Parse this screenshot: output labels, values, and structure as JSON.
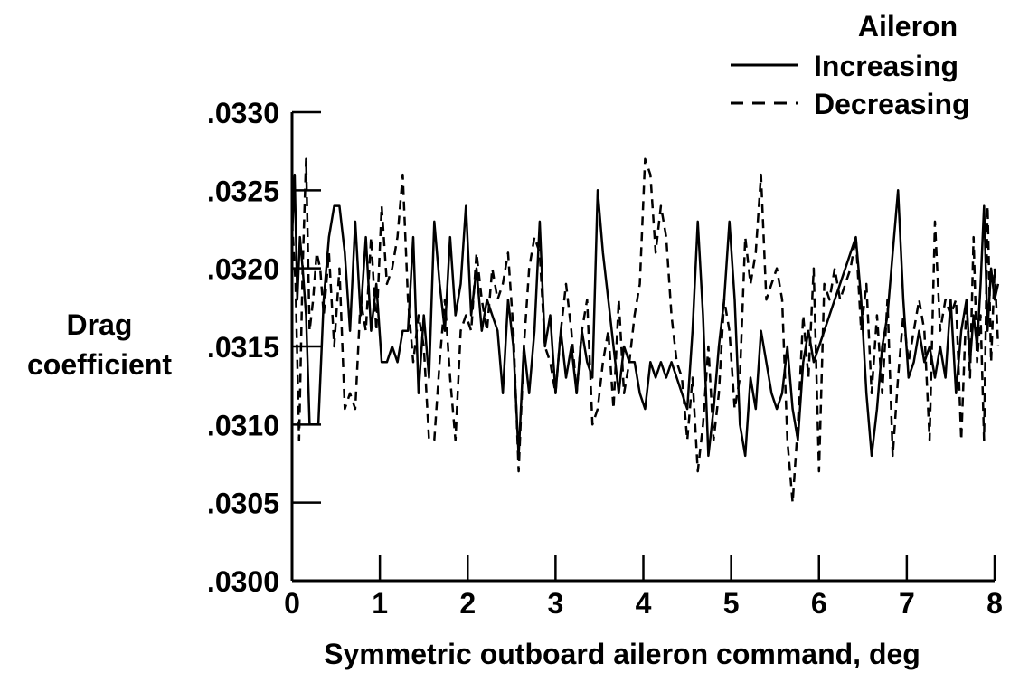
{
  "chart_data": {
    "type": "line",
    "xlabel": "Symmetric outboard aileron command, deg",
    "ylabel_lines": [
      "Drag",
      "coefficient"
    ],
    "xlim": [
      0,
      8
    ],
    "ylim": [
      0.03,
      0.033
    ],
    "x_ticks": [
      0,
      1,
      2,
      3,
      4,
      5,
      6,
      7,
      8
    ],
    "x_tick_labels": [
      "0",
      "1",
      "2",
      "3",
      "4",
      "5",
      "6",
      "7",
      "8"
    ],
    "y_ticks": [
      0.03,
      0.0305,
      0.031,
      0.0315,
      0.032,
      0.0325,
      0.033
    ],
    "y_tick_labels": [
      ".0300",
      ".0305",
      ".0310",
      ".0315",
      ".0320",
      ".0325",
      ".0330"
    ],
    "grid": false,
    "legend": {
      "title": "Aileron",
      "placement": "top-right"
    },
    "series": [
      {
        "name": "Increasing",
        "style": "solid",
        "color": "#000000",
        "x": [
          0.0,
          0.03,
          0.06,
          0.09,
          0.12,
          0.16,
          0.2,
          0.25,
          0.3,
          0.36,
          0.42,
          0.48,
          0.54,
          0.6,
          0.66,
          0.72,
          0.78,
          0.84,
          0.9,
          0.96,
          1.02,
          1.08,
          1.14,
          1.2,
          1.26,
          1.32,
          1.38,
          1.44,
          1.5,
          1.56,
          1.62,
          1.68,
          1.74,
          1.8,
          1.86,
          1.92,
          1.98,
          2.04,
          2.1,
          2.16,
          2.22,
          2.28,
          2.34,
          2.4,
          2.46,
          2.52,
          2.58,
          2.64,
          2.7,
          2.76,
          2.82,
          2.88,
          2.94,
          3.0,
          3.06,
          3.12,
          3.18,
          3.24,
          3.3,
          3.36,
          3.42,
          3.48,
          3.54,
          3.6,
          3.66,
          3.72,
          3.78,
          3.84,
          3.9,
          3.96,
          4.02,
          4.08,
          4.14,
          4.2,
          4.26,
          4.32,
          4.38,
          4.44,
          4.5,
          4.56,
          4.62,
          4.68,
          4.74,
          4.8,
          4.86,
          4.92,
          4.98,
          5.04,
          5.1,
          5.16,
          5.22,
          5.28,
          5.34,
          5.4,
          5.46,
          5.52,
          5.58,
          5.64,
          5.7,
          5.76,
          5.82,
          5.88,
          5.94,
          6.0,
          6.06,
          6.12,
          6.18,
          6.24,
          6.3,
          6.36,
          6.42,
          6.48,
          6.54,
          6.6,
          6.66,
          6.72,
          6.78,
          6.84,
          6.9,
          6.96,
          7.02,
          7.08,
          7.14,
          7.2,
          7.26,
          7.32,
          7.38,
          7.44,
          7.5,
          7.56,
          7.62,
          7.68,
          7.72,
          7.76,
          7.8,
          7.84,
          7.88,
          7.92,
          7.96,
          8.0,
          8.04
        ],
        "y": [
          0.0322,
          0.0326,
          0.0318,
          0.0322,
          0.032,
          0.0317,
          0.031,
          0.031,
          0.031,
          0.0318,
          0.0322,
          0.0324,
          0.0324,
          0.0321,
          0.0316,
          0.0323,
          0.0317,
          0.0322,
          0.0316,
          0.0319,
          0.0314,
          0.0314,
          0.0315,
          0.0314,
          0.0316,
          0.0316,
          0.0322,
          0.0312,
          0.0317,
          0.0313,
          0.0323,
          0.0319,
          0.0316,
          0.0322,
          0.0317,
          0.0319,
          0.0324,
          0.0317,
          0.032,
          0.0316,
          0.0318,
          0.0317,
          0.0316,
          0.0312,
          0.0318,
          0.0315,
          0.0308,
          0.0315,
          0.0312,
          0.0316,
          0.0323,
          0.0315,
          0.0317,
          0.0312,
          0.0316,
          0.0313,
          0.0315,
          0.0312,
          0.0316,
          0.0314,
          0.0313,
          0.0325,
          0.0321,
          0.0318,
          0.0315,
          0.0312,
          0.0315,
          0.0314,
          0.0314,
          0.0312,
          0.0311,
          0.0314,
          0.0313,
          0.0314,
          0.0313,
          0.0314,
          0.0313,
          0.0312,
          0.0311,
          0.0316,
          0.0323,
          0.0317,
          0.0308,
          0.0311,
          0.0315,
          0.0318,
          0.0323,
          0.0318,
          0.031,
          0.0308,
          0.0313,
          0.0311,
          0.0316,
          0.0314,
          0.0312,
          0.0311,
          0.0312,
          0.0315,
          0.0311,
          0.0309,
          0.0314,
          0.0316,
          0.0314,
          0.0315,
          0.0316,
          0.0317,
          0.0318,
          0.0319,
          0.032,
          0.0321,
          0.0322,
          0.0318,
          0.0312,
          0.0308,
          0.0311,
          0.0315,
          0.0317,
          0.0321,
          0.0325,
          0.0318,
          0.0313,
          0.0314,
          0.0316,
          0.0314,
          0.0315,
          0.0313,
          0.0315,
          0.0313,
          0.0318,
          0.0312,
          0.0316,
          0.0318,
          0.0314,
          0.0317,
          0.0315,
          0.0319,
          0.0324,
          0.0316,
          0.032,
          0.0318,
          0.0319
        ],
        "x_sparse_note": ""
      },
      {
        "name": "Decreasing",
        "style": "dashed",
        "color": "#000000",
        "x": [
          0.0,
          0.04,
          0.08,
          0.12,
          0.16,
          0.2,
          0.24,
          0.28,
          0.32,
          0.36,
          0.42,
          0.48,
          0.54,
          0.6,
          0.66,
          0.72,
          0.78,
          0.84,
          0.9,
          0.96,
          1.02,
          1.08,
          1.14,
          1.2,
          1.26,
          1.32,
          1.38,
          1.44,
          1.5,
          1.56,
          1.62,
          1.68,
          1.74,
          1.8,
          1.86,
          1.92,
          1.98,
          2.04,
          2.1,
          2.16,
          2.22,
          2.28,
          2.34,
          2.4,
          2.46,
          2.52,
          2.58,
          2.64,
          2.7,
          2.76,
          2.82,
          2.88,
          2.94,
          3.0,
          3.06,
          3.12,
          3.18,
          3.24,
          3.3,
          3.36,
          3.42,
          3.48,
          3.54,
          3.6,
          3.66,
          3.72,
          3.78,
          3.84,
          3.9,
          3.96,
          4.02,
          4.08,
          4.14,
          4.2,
          4.26,
          4.32,
          4.38,
          4.44,
          4.5,
          4.56,
          4.62,
          4.68,
          4.74,
          4.8,
          4.86,
          4.92,
          4.98,
          5.04,
          5.1,
          5.16,
          5.22,
          5.28,
          5.34,
          5.4,
          5.46,
          5.52,
          5.58,
          5.64,
          5.7,
          5.76,
          5.82,
          5.88,
          5.94,
          6.0,
          6.06,
          6.12,
          6.18,
          6.24,
          6.3,
          6.36,
          6.42,
          6.48,
          6.54,
          6.6,
          6.66,
          6.72,
          6.78,
          6.84,
          6.9,
          6.96,
          7.02,
          7.08,
          7.14,
          7.2,
          7.26,
          7.32,
          7.38,
          7.44,
          7.5,
          7.56,
          7.62,
          7.68,
          7.72,
          7.76,
          7.8,
          7.84,
          7.88,
          7.92,
          7.96,
          8.0,
          8.04
        ],
        "y": [
          0.0323,
          0.0319,
          0.0309,
          0.032,
          0.0327,
          0.0316,
          0.0318,
          0.0321,
          0.032,
          0.0317,
          0.0321,
          0.0315,
          0.032,
          0.0311,
          0.0312,
          0.0311,
          0.0318,
          0.0316,
          0.0322,
          0.0316,
          0.0324,
          0.0319,
          0.032,
          0.0322,
          0.0326,
          0.0318,
          0.0314,
          0.0317,
          0.0315,
          0.0309,
          0.0309,
          0.0314,
          0.0318,
          0.0313,
          0.0309,
          0.0316,
          0.0317,
          0.0316,
          0.0321,
          0.0318,
          0.0316,
          0.032,
          0.0318,
          0.0319,
          0.0321,
          0.0316,
          0.0307,
          0.0315,
          0.032,
          0.0322,
          0.0321,
          0.0315,
          0.0314,
          0.0312,
          0.0316,
          0.0319,
          0.0316,
          0.0312,
          0.0316,
          0.0318,
          0.031,
          0.0311,
          0.0314,
          0.0316,
          0.0311,
          0.0318,
          0.0312,
          0.0314,
          0.0317,
          0.0319,
          0.0327,
          0.0326,
          0.0321,
          0.0324,
          0.0322,
          0.0317,
          0.0314,
          0.0313,
          0.0309,
          0.0313,
          0.0307,
          0.031,
          0.0315,
          0.0309,
          0.0312,
          0.0318,
          0.0316,
          0.0311,
          0.0313,
          0.0322,
          0.0319,
          0.0321,
          0.0326,
          0.0318,
          0.0319,
          0.032,
          0.0318,
          0.0309,
          0.0305,
          0.031,
          0.0317,
          0.0313,
          0.032,
          0.0307,
          0.0319,
          0.0318,
          0.032,
          0.0318,
          0.0319,
          0.032,
          0.0322,
          0.0316,
          0.0319,
          0.0312,
          0.0317,
          0.0312,
          0.0318,
          0.0308,
          0.0313,
          0.0317,
          0.0314,
          0.0316,
          0.0318,
          0.0316,
          0.0309,
          0.0323,
          0.0316,
          0.0318,
          0.0317,
          0.0318,
          0.0309,
          0.0318,
          0.0313,
          0.0322,
          0.0314,
          0.0317,
          0.0309,
          0.0324,
          0.0314,
          0.032,
          0.0315
        ]
      }
    ]
  }
}
